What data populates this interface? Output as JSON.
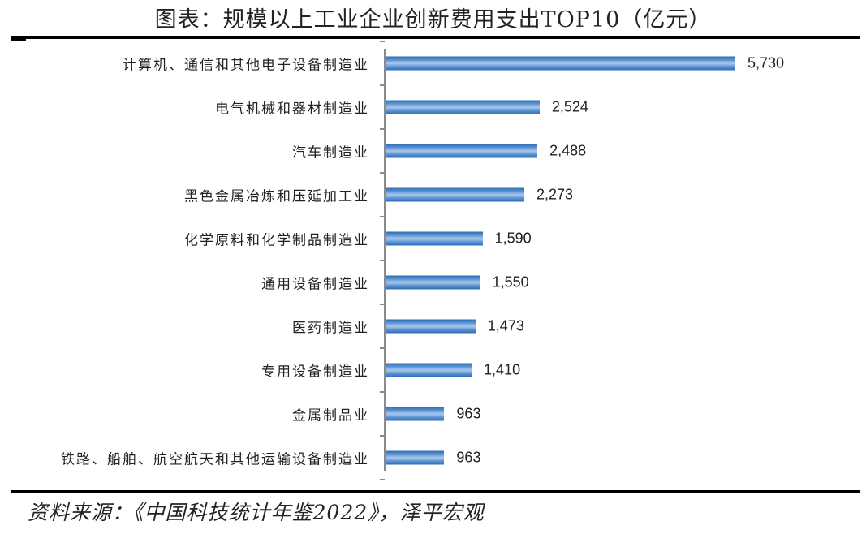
{
  "title": "图表：规模以上工业企业创新费用支出TOP10（亿元）",
  "source": "资料来源：《中国科技统计年鉴2022》，泽平宏观",
  "chart_data": {
    "type": "bar",
    "orientation": "horizontal",
    "title": "图表：规模以上工业企业创新费用支出TOP10（亿元）",
    "xlabel": "",
    "ylabel": "",
    "unit": "亿元",
    "grid": false,
    "legend": null,
    "categories": [
      "计算机、通信和其他电子设备制造业",
      "电气机械和器材制造业",
      "汽车制造业",
      "黑色金属冶炼和压延加工业",
      "化学原料和化学制品制造业",
      "通用设备制造业",
      "医药制造业",
      "专用设备制造业",
      "金属制品业",
      "铁路、船舶、航空航天和其他运输设备制造业"
    ],
    "values": [
      5730,
      2524,
      2488,
      2273,
      1590,
      1550,
      1473,
      1410,
      963,
      963
    ],
    "labels": [
      "5,730",
      "2,524",
      "2,488",
      "2,273",
      "1,590",
      "1,550",
      "1,473",
      "1,410",
      "963",
      "963"
    ],
    "bar_color": "#4a86c8",
    "source": "资料来源：《中国科技统计年鉴2022》，泽平宏观"
  }
}
